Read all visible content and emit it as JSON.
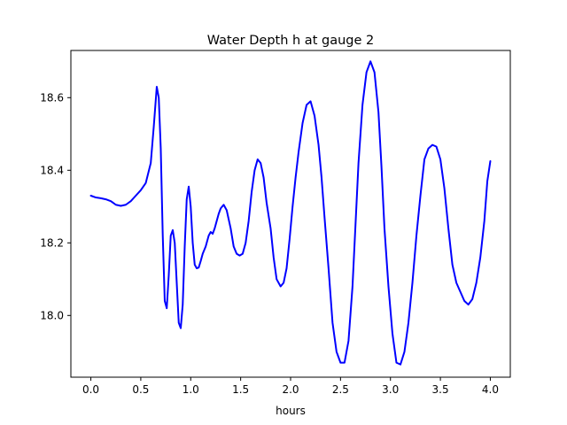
{
  "chart_data": {
    "type": "line",
    "title": "Water Depth h at gauge 2",
    "xlabel": "hours",
    "ylabel": "",
    "xlim": [
      -0.2,
      4.2
    ],
    "ylim": [
      17.83,
      18.73
    ],
    "xticks": [
      0.0,
      0.5,
      1.0,
      1.5,
      2.0,
      2.5,
      3.0,
      3.5,
      4.0
    ],
    "xtick_labels": [
      "0.0",
      "0.5",
      "1.0",
      "1.5",
      "2.0",
      "2.5",
      "3.0",
      "3.5",
      "4.0"
    ],
    "yticks": [
      18.0,
      18.2,
      18.4,
      18.6
    ],
    "ytick_labels": [
      "18.0",
      "18.2",
      "18.4",
      "18.6"
    ],
    "grid": false,
    "series": [
      {
        "color": "#0000ff",
        "x": [
          0.0,
          0.05,
          0.1,
          0.15,
          0.2,
          0.25,
          0.3,
          0.35,
          0.4,
          0.45,
          0.5,
          0.55,
          0.6,
          0.63,
          0.66,
          0.68,
          0.7,
          0.72,
          0.74,
          0.76,
          0.78,
          0.8,
          0.82,
          0.84,
          0.86,
          0.88,
          0.9,
          0.92,
          0.94,
          0.96,
          0.98,
          1.0,
          1.02,
          1.04,
          1.06,
          1.08,
          1.1,
          1.12,
          1.15,
          1.18,
          1.2,
          1.22,
          1.24,
          1.26,
          1.28,
          1.3,
          1.33,
          1.36,
          1.4,
          1.43,
          1.46,
          1.49,
          1.52,
          1.55,
          1.58,
          1.61,
          1.64,
          1.67,
          1.7,
          1.73,
          1.76,
          1.8,
          1.83,
          1.86,
          1.9,
          1.93,
          1.96,
          1.99,
          2.02,
          2.05,
          2.08,
          2.12,
          2.16,
          2.2,
          2.24,
          2.28,
          2.31,
          2.34,
          2.38,
          2.42,
          2.46,
          2.5,
          2.54,
          2.58,
          2.62,
          2.65,
          2.68,
          2.72,
          2.76,
          2.8,
          2.84,
          2.88,
          2.91,
          2.94,
          2.98,
          3.02,
          3.06,
          3.1,
          3.14,
          3.18,
          3.22,
          3.26,
          3.3,
          3.34,
          3.38,
          3.42,
          3.46,
          3.5,
          3.54,
          3.58,
          3.62,
          3.66,
          3.7,
          3.74,
          3.78,
          3.82,
          3.86,
          3.9,
          3.94,
          3.97,
          4.0
        ],
        "y": [
          18.33,
          18.325,
          18.323,
          18.32,
          18.315,
          18.305,
          18.302,
          18.305,
          18.315,
          18.33,
          18.345,
          18.365,
          18.42,
          18.52,
          18.63,
          18.6,
          18.46,
          18.22,
          18.04,
          18.02,
          18.11,
          18.22,
          18.235,
          18.2,
          18.09,
          17.98,
          17.965,
          18.03,
          18.19,
          18.32,
          18.355,
          18.3,
          18.2,
          18.14,
          18.13,
          18.132,
          18.15,
          18.17,
          18.19,
          18.22,
          18.23,
          18.225,
          18.24,
          18.26,
          18.28,
          18.295,
          18.305,
          18.29,
          18.24,
          18.19,
          18.17,
          18.165,
          18.17,
          18.2,
          18.26,
          18.34,
          18.4,
          18.43,
          18.42,
          18.38,
          18.31,
          18.24,
          18.16,
          18.1,
          18.08,
          18.09,
          18.13,
          18.21,
          18.3,
          18.38,
          18.45,
          18.53,
          18.58,
          18.59,
          18.55,
          18.47,
          18.38,
          18.27,
          18.13,
          17.98,
          17.9,
          17.87,
          17.87,
          17.93,
          18.08,
          18.25,
          18.42,
          18.58,
          18.67,
          18.7,
          18.67,
          18.56,
          18.41,
          18.24,
          18.08,
          17.95,
          17.87,
          17.865,
          17.9,
          17.98,
          18.09,
          18.22,
          18.33,
          18.43,
          18.46,
          18.47,
          18.465,
          18.43,
          18.35,
          18.24,
          18.14,
          18.09,
          18.065,
          18.04,
          18.03,
          18.045,
          18.09,
          18.16,
          18.26,
          18.37,
          18.425
        ]
      }
    ]
  }
}
